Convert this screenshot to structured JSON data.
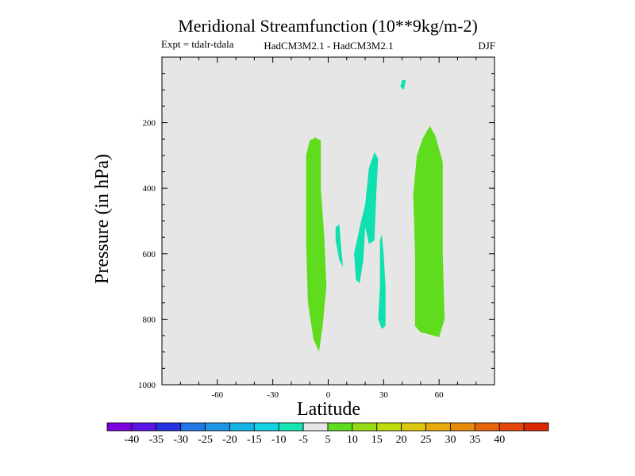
{
  "chart_data": {
    "type": "contour",
    "title": "Meridional Streamfunction (10**9kg/m-2)",
    "subtitle_left": "Expt = tdalr-tdala",
    "subtitle_center": "HadCM3M2.1 - HadCM3M2.1",
    "subtitle_right": "DJF",
    "xlabel": "Latitude",
    "ylabel": "Pressure (in hPa)",
    "xlim": [
      -90,
      90
    ],
    "ylim": [
      1000,
      0
    ],
    "x_ticks": [
      -60,
      -30,
      0,
      30,
      60
    ],
    "x_tick_labels": [
      "-60",
      "-30",
      "0",
      "30",
      "60"
    ],
    "y_ticks": [
      200,
      400,
      600,
      800,
      1000
    ],
    "y_tick_labels": [
      "200",
      "400",
      "600",
      "800",
      "1000"
    ],
    "background_color": "#e6e6e6",
    "regions": [
      {
        "name": "positive-5-to-10-south",
        "level": "5 to 10",
        "color": "#5fdc1e",
        "points": [
          [
            -10,
            255
          ],
          [
            -7,
            245
          ],
          [
            -4,
            255
          ],
          [
            -4,
            400
          ],
          [
            -2,
            560
          ],
          [
            -1,
            700
          ],
          [
            -3,
            820
          ],
          [
            -5,
            900
          ],
          [
            -8,
            860
          ],
          [
            -11,
            750
          ],
          [
            -12,
            560
          ],
          [
            -12,
            400
          ],
          [
            -12,
            300
          ]
        ]
      },
      {
        "name": "positive-5-to-10-north",
        "level": "5 to 10",
        "color": "#5fdc1e",
        "points": [
          [
            55,
            210
          ],
          [
            58,
            240
          ],
          [
            62,
            320
          ],
          [
            62,
            600
          ],
          [
            63,
            800
          ],
          [
            60,
            855
          ],
          [
            57,
            850
          ],
          [
            54,
            845
          ],
          [
            50,
            840
          ],
          [
            47,
            820
          ],
          [
            47,
            600
          ],
          [
            46,
            420
          ],
          [
            48,
            300
          ],
          [
            51,
            250
          ]
        ]
      },
      {
        "name": "negative-10-to-5-upper-jet",
        "level": "-10 to -5",
        "color": "#10e0b0",
        "points": [
          [
            40,
            70
          ],
          [
            42,
            70
          ],
          [
            41,
            100
          ],
          [
            39,
            90
          ]
        ]
      },
      {
        "name": "negative-10-to-5-midlat",
        "level": "-10 to -5",
        "color": "#10e0b0",
        "points": [
          [
            22,
            340
          ],
          [
            25,
            290
          ],
          [
            27,
            310
          ],
          [
            26,
            420
          ],
          [
            25,
            560
          ],
          [
            22,
            570
          ],
          [
            20,
            520
          ],
          [
            19,
            620
          ],
          [
            17,
            690
          ],
          [
            15,
            680
          ],
          [
            14,
            600
          ],
          [
            17,
            520
          ],
          [
            20,
            450
          ]
        ]
      },
      {
        "name": "negative-10-to-5-small-left",
        "level": "-10 to -5",
        "color": "#10e0b0",
        "points": [
          [
            4,
            520
          ],
          [
            6,
            510
          ],
          [
            7,
            580
          ],
          [
            8,
            640
          ],
          [
            6,
            620
          ],
          [
            4,
            560
          ]
        ]
      },
      {
        "name": "negative-10-to-5-lower",
        "level": "-10 to -5",
        "color": "#10e0b0",
        "points": [
          [
            28,
            560
          ],
          [
            29,
            540
          ],
          [
            30,
            600
          ],
          [
            31,
            700
          ],
          [
            31,
            820
          ],
          [
            29,
            830
          ],
          [
            27,
            800
          ],
          [
            28,
            700
          ]
        ]
      }
    ],
    "colorbar": {
      "colors": [
        "#7a00dc",
        "#5a14e6",
        "#2832e0",
        "#1e78e6",
        "#1e96e6",
        "#14b4e6",
        "#14d2e6",
        "#14e6b4",
        "#e6e6e6",
        "#5fdc1e",
        "#96dc14",
        "#bedc0a",
        "#dcc80a",
        "#e6aa0a",
        "#e68c0a",
        "#e6640a",
        "#e6460a",
        "#dc2800"
      ],
      "labels": [
        "-40",
        "-35",
        "-30",
        "-25",
        "-20",
        "-15",
        "-10",
        "-5",
        "5",
        "10",
        "15",
        "20",
        "25",
        "30",
        "35",
        "40"
      ]
    }
  }
}
